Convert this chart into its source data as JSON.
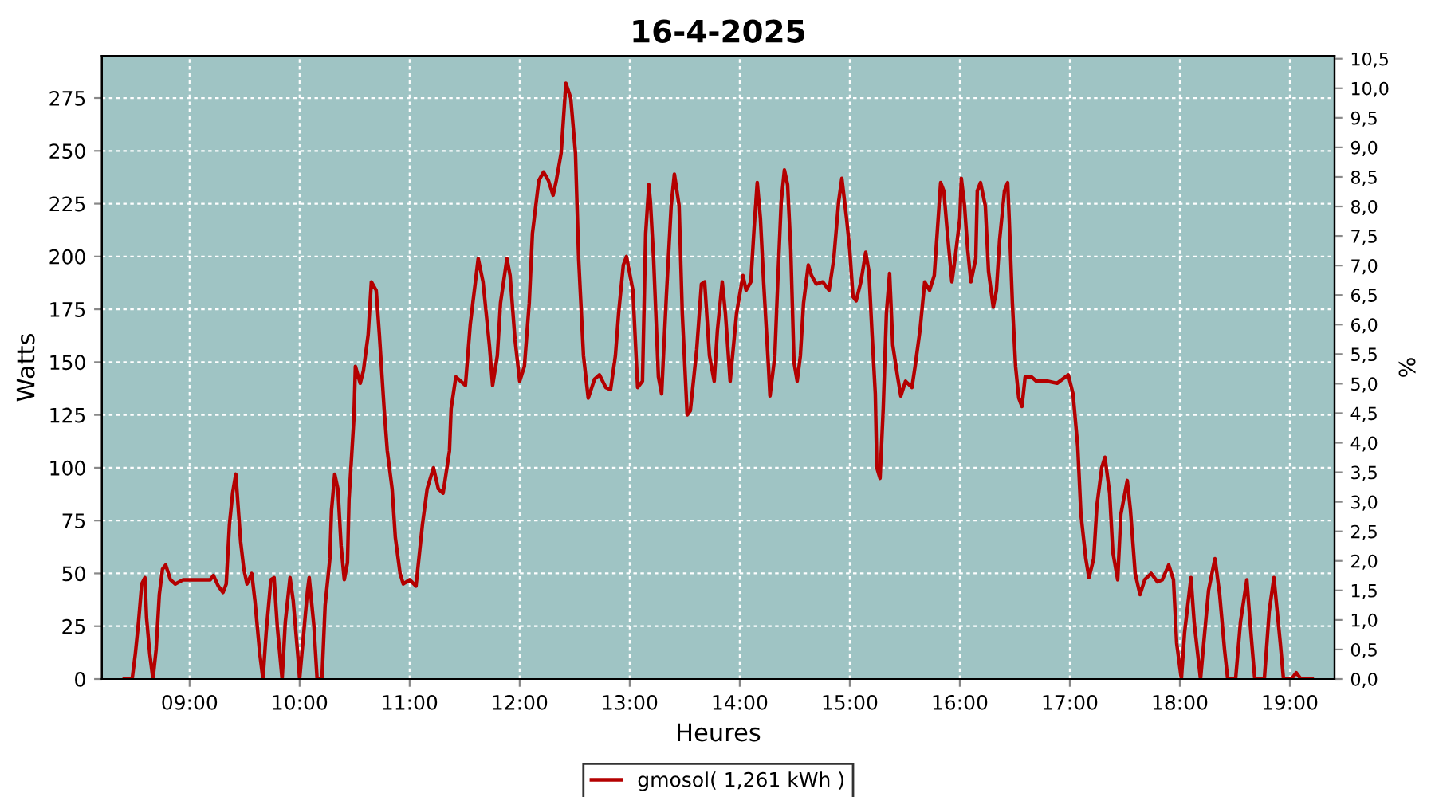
{
  "chart_data": {
    "type": "line",
    "title": "16-4-2025",
    "xlabel": "Heures",
    "ylabel": "Watts",
    "y2label": "%",
    "x": [
      8.406,
      8.478,
      8.507,
      8.536,
      8.565,
      8.594,
      8.609,
      8.638,
      8.667,
      8.696,
      8.725,
      8.754,
      8.783,
      8.826,
      8.87,
      8.942,
      9.058,
      9.188,
      9.217,
      9.261,
      9.304,
      9.333,
      9.362,
      9.391,
      9.42,
      9.464,
      9.493,
      9.522,
      9.565,
      9.594,
      9.638,
      9.667,
      9.696,
      9.739,
      9.768,
      9.797,
      9.841,
      9.87,
      9.913,
      9.942,
      9.986,
      10.0,
      10.029,
      10.072,
      10.087,
      10.13,
      10.159,
      10.203,
      10.232,
      10.275,
      10.29,
      10.319,
      10.348,
      10.377,
      10.406,
      10.435,
      10.449,
      10.493,
      10.507,
      10.551,
      10.58,
      10.623,
      10.652,
      10.696,
      10.725,
      10.768,
      10.797,
      10.841,
      10.87,
      10.913,
      10.942,
      11.0,
      11.058,
      11.116,
      11.159,
      11.217,
      11.261,
      11.304,
      11.362,
      11.377,
      11.42,
      11.507,
      11.551,
      11.623,
      11.667,
      11.725,
      11.754,
      11.797,
      11.826,
      11.884,
      11.913,
      11.957,
      12.0,
      12.043,
      12.087,
      12.116,
      12.174,
      12.217,
      12.261,
      12.304,
      12.333,
      12.377,
      12.42,
      12.464,
      12.507,
      12.536,
      12.58,
      12.623,
      12.681,
      12.725,
      12.783,
      12.826,
      12.87,
      12.899,
      12.942,
      12.971,
      13.029,
      13.072,
      13.116,
      13.145,
      13.174,
      13.188,
      13.217,
      13.261,
      13.29,
      13.333,
      13.377,
      13.406,
      13.449,
      13.478,
      13.522,
      13.551,
      13.609,
      13.652,
      13.681,
      13.725,
      13.768,
      13.797,
      13.841,
      13.87,
      13.913,
      13.971,
      14.029,
      14.058,
      14.101,
      14.13,
      14.159,
      14.188,
      14.217,
      14.261,
      14.275,
      14.319,
      14.348,
      14.377,
      14.406,
      14.435,
      14.464,
      14.493,
      14.522,
      14.551,
      14.58,
      14.623,
      14.652,
      14.696,
      14.754,
      14.812,
      14.855,
      14.899,
      14.928,
      14.971,
      15.0,
      15.029,
      15.058,
      15.101,
      15.145,
      15.174,
      15.203,
      15.232,
      15.246,
      15.275,
      15.304,
      15.333,
      15.362,
      15.391,
      15.435,
      15.464,
      15.507,
      15.565,
      15.594,
      15.638,
      15.681,
      15.725,
      15.768,
      15.797,
      15.826,
      15.855,
      15.884,
      15.928,
      15.957,
      16.0,
      16.014,
      16.043,
      16.072,
      16.101,
      16.145,
      16.159,
      16.188,
      16.232,
      16.261,
      16.304,
      16.333,
      16.362,
      16.406,
      16.435,
      16.449,
      16.478,
      16.507,
      16.536,
      16.565,
      16.594,
      16.652,
      16.696,
      16.797,
      16.884,
      16.986,
      17.029,
      17.072,
      17.101,
      17.145,
      17.174,
      17.217,
      17.246,
      17.29,
      17.319,
      17.362,
      17.391,
      17.435,
      17.464,
      17.522,
      17.551,
      17.594,
      17.638,
      17.681,
      17.739,
      17.797,
      17.841,
      17.899,
      17.942,
      17.971,
      18.014,
      18.043,
      18.101,
      18.13,
      18.188,
      18.217,
      18.261,
      18.319,
      18.362,
      18.406,
      18.435,
      18.507,
      18.551,
      18.609,
      18.638,
      18.681,
      18.768,
      18.812,
      18.855,
      18.913,
      18.942,
      19.014,
      19.058,
      19.101,
      19.203
    ],
    "series": [
      {
        "name": "gmosol( 1,261 kWh )",
        "color": "#b40000",
        "values": [
          0,
          0,
          12,
          27,
          45,
          48,
          29,
          12,
          0,
          14,
          40,
          52,
          54,
          47,
          45,
          47,
          47,
          47,
          49,
          44,
          41,
          45,
          73,
          88,
          97,
          65,
          52,
          45,
          50,
          37,
          12,
          0,
          22,
          47,
          48,
          25,
          0,
          27,
          48,
          37,
          10,
          0,
          17,
          42,
          48,
          25,
          0,
          0,
          35,
          57,
          80,
          97,
          90,
          63,
          47,
          55,
          85,
          123,
          148,
          140,
          146,
          163,
          188,
          184,
          163,
          128,
          108,
          90,
          67,
          50,
          45,
          47,
          44,
          73,
          90,
          100,
          90,
          88,
          108,
          128,
          143,
          139,
          168,
          199,
          188,
          158,
          139,
          153,
          178,
          199,
          191,
          161,
          141,
          148,
          178,
          211,
          236,
          240,
          236,
          229,
          236,
          249,
          282,
          275,
          249,
          199,
          153,
          133,
          142,
          144,
          138,
          137,
          153,
          173,
          196,
          200,
          184,
          138,
          141,
          211,
          234,
          226,
          199,
          143,
          135,
          181,
          224,
          239,
          224,
          173,
          125,
          127,
          156,
          187,
          188,
          153,
          141,
          165,
          188,
          173,
          141,
          173,
          191,
          184,
          188,
          213,
          235,
          218,
          188,
          148,
          134,
          153,
          191,
          226,
          241,
          234,
          203,
          150,
          141,
          153,
          178,
          196,
          191,
          187,
          188,
          184,
          199,
          226,
          237,
          218,
          203,
          181,
          179,
          188,
          202,
          193,
          163,
          135,
          100,
          95,
          128,
          173,
          192,
          158,
          143,
          134,
          141,
          138,
          148,
          165,
          188,
          184,
          191,
          213,
          235,
          231,
          213,
          188,
          199,
          218,
          237,
          224,
          203,
          188,
          199,
          231,
          235,
          224,
          193,
          176,
          184,
          208,
          231,
          235,
          218,
          178,
          148,
          133,
          129,
          143,
          143,
          141,
          141,
          140,
          144,
          135,
          110,
          78,
          57,
          48,
          57,
          82,
          100,
          105,
          88,
          60,
          47,
          78,
          94,
          80,
          50,
          40,
          47,
          50,
          46,
          47,
          54,
          47,
          17,
          0,
          22,
          48,
          27,
          0,
          17,
          42,
          57,
          40,
          14,
          0,
          0,
          27,
          47,
          27,
          0,
          0,
          32,
          48,
          17,
          0,
          0,
          3,
          0,
          0
        ]
      }
    ],
    "xlim": [
      8.203,
      19.406
    ],
    "ylim": [
      0,
      295
    ],
    "y2lim": [
      0,
      10.55
    ],
    "xticks": [
      {
        "value": 9,
        "label": "09:00"
      },
      {
        "value": 10,
        "label": "10:00"
      },
      {
        "value": 11,
        "label": "11:00"
      },
      {
        "value": 12,
        "label": "12:00"
      },
      {
        "value": 13,
        "label": "13:00"
      },
      {
        "value": 14,
        "label": "14:00"
      },
      {
        "value": 15,
        "label": "15:00"
      },
      {
        "value": 16,
        "label": "16:00"
      },
      {
        "value": 17,
        "label": "17:00"
      },
      {
        "value": 18,
        "label": "18:00"
      },
      {
        "value": 19,
        "label": "19:00"
      }
    ],
    "yticks": [
      0,
      25,
      50,
      75,
      100,
      125,
      150,
      175,
      200,
      225,
      250,
      275
    ],
    "y2ticks": [
      {
        "value": 0,
        "label": "0,0"
      },
      {
        "value": 0.5,
        "label": "0,5"
      },
      {
        "value": 1,
        "label": "1,0"
      },
      {
        "value": 1.5,
        "label": "1,5"
      },
      {
        "value": 2,
        "label": "2,0"
      },
      {
        "value": 2.5,
        "label": "2,5"
      },
      {
        "value": 3,
        "label": "3,0"
      },
      {
        "value": 3.5,
        "label": "3,5"
      },
      {
        "value": 4,
        "label": "4,0"
      },
      {
        "value": 4.5,
        "label": "4,5"
      },
      {
        "value": 5,
        "label": "5,0"
      },
      {
        "value": 5.5,
        "label": "5,5"
      },
      {
        "value": 6,
        "label": "6,0"
      },
      {
        "value": 6.5,
        "label": "6,5"
      },
      {
        "value": 7,
        "label": "7,0"
      },
      {
        "value": 7.5,
        "label": "7,5"
      },
      {
        "value": 8,
        "label": "8,0"
      },
      {
        "value": 8.5,
        "label": "8,5"
      },
      {
        "value": 9,
        "label": "9,0"
      },
      {
        "value": 9.5,
        "label": "9,5"
      },
      {
        "value": 10,
        "label": "10,0"
      },
      {
        "value": 10.5,
        "label": "10,5"
      }
    ],
    "grid": true,
    "legend": "bottom",
    "marker": "none",
    "line_style": "solid"
  }
}
